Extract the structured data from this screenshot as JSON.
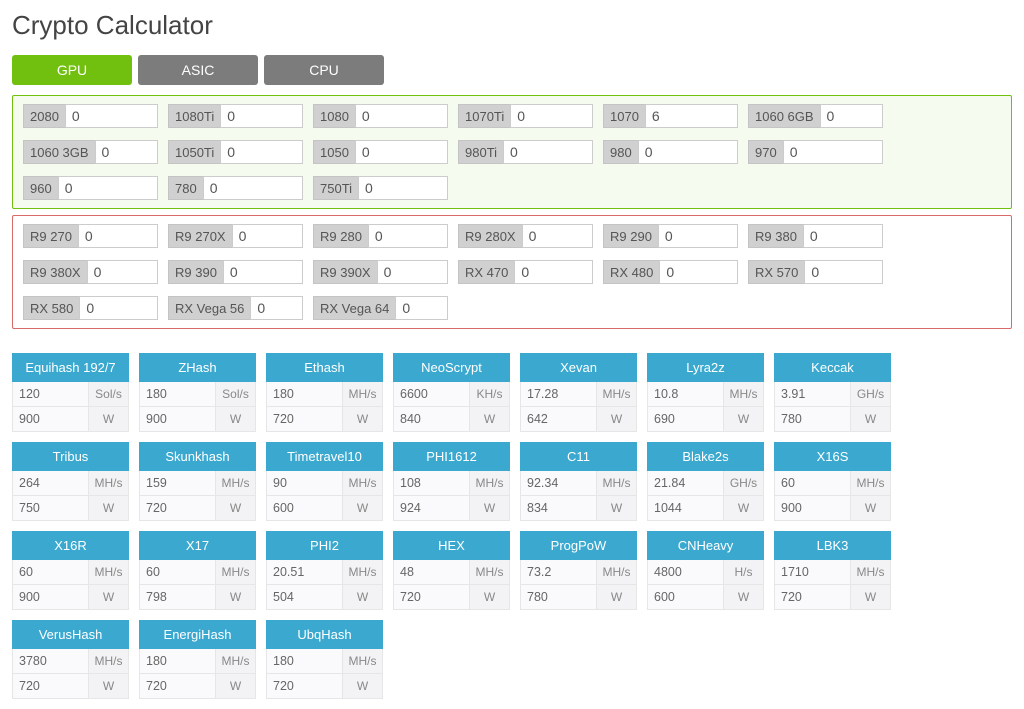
{
  "title": "Crypto Calculator",
  "tabs": {
    "gpu": "GPU",
    "asic": "ASIC",
    "cpu": "CPU"
  },
  "colors": {
    "tab_active": "#71c010",
    "tab_inactive": "#7c7c7c",
    "panel_green_border": "#71c010",
    "panel_green_bg": "#f6fbef",
    "panel_red_border": "#d86a6a",
    "algo_header": "#3ba9cf"
  },
  "nvidia": [
    {
      "label": "2080",
      "value": "0"
    },
    {
      "label": "1080Ti",
      "value": "0"
    },
    {
      "label": "1080",
      "value": "0"
    },
    {
      "label": "1070Ti",
      "value": "0"
    },
    {
      "label": "1070",
      "value": "6"
    },
    {
      "label": "1060 6GB",
      "value": "0"
    },
    {
      "label": "1060 3GB",
      "value": "0"
    },
    {
      "label": "1050Ti",
      "value": "0"
    },
    {
      "label": "1050",
      "value": "0"
    },
    {
      "label": "980Ti",
      "value": "0"
    },
    {
      "label": "980",
      "value": "0"
    },
    {
      "label": "970",
      "value": "0"
    },
    {
      "label": "960",
      "value": "0"
    },
    {
      "label": "780",
      "value": "0"
    },
    {
      "label": "750Ti",
      "value": "0"
    }
  ],
  "amd": [
    {
      "label": "R9 270",
      "value": "0"
    },
    {
      "label": "R9 270X",
      "value": "0"
    },
    {
      "label": "R9 280",
      "value": "0"
    },
    {
      "label": "R9 280X",
      "value": "0"
    },
    {
      "label": "R9 290",
      "value": "0"
    },
    {
      "label": "R9 380",
      "value": "0"
    },
    {
      "label": "R9 380X",
      "value": "0"
    },
    {
      "label": "R9 390",
      "value": "0"
    },
    {
      "label": "R9 390X",
      "value": "0"
    },
    {
      "label": "RX 470",
      "value": "0"
    },
    {
      "label": "RX 480",
      "value": "0"
    },
    {
      "label": "RX 570",
      "value": "0"
    },
    {
      "label": "RX 580",
      "value": "0"
    },
    {
      "label": "RX Vega 56",
      "value": "0"
    },
    {
      "label": "RX Vega 64",
      "value": "0"
    }
  ],
  "algos": [
    {
      "name": "Equihash 192/7",
      "hash": "120",
      "hash_unit": "Sol/s",
      "power": "900",
      "power_unit": "W"
    },
    {
      "name": "ZHash",
      "hash": "180",
      "hash_unit": "Sol/s",
      "power": "900",
      "power_unit": "W"
    },
    {
      "name": "Ethash",
      "hash": "180",
      "hash_unit": "MH/s",
      "power": "720",
      "power_unit": "W"
    },
    {
      "name": "NeoScrypt",
      "hash": "6600",
      "hash_unit": "KH/s",
      "power": "840",
      "power_unit": "W"
    },
    {
      "name": "Xevan",
      "hash": "17.28",
      "hash_unit": "MH/s",
      "power": "642",
      "power_unit": "W"
    },
    {
      "name": "Lyra2z",
      "hash": "10.8",
      "hash_unit": "MH/s",
      "power": "690",
      "power_unit": "W"
    },
    {
      "name": "Keccak",
      "hash": "3.91",
      "hash_unit": "GH/s",
      "power": "780",
      "power_unit": "W"
    },
    {
      "name": "Tribus",
      "hash": "264",
      "hash_unit": "MH/s",
      "power": "750",
      "power_unit": "W"
    },
    {
      "name": "Skunkhash",
      "hash": "159",
      "hash_unit": "MH/s",
      "power": "720",
      "power_unit": "W"
    },
    {
      "name": "Timetravel10",
      "hash": "90",
      "hash_unit": "MH/s",
      "power": "600",
      "power_unit": "W"
    },
    {
      "name": "PHI1612",
      "hash": "108",
      "hash_unit": "MH/s",
      "power": "924",
      "power_unit": "W"
    },
    {
      "name": "C11",
      "hash": "92.34",
      "hash_unit": "MH/s",
      "power": "834",
      "power_unit": "W"
    },
    {
      "name": "Blake2s",
      "hash": "21.84",
      "hash_unit": "GH/s",
      "power": "1044",
      "power_unit": "W"
    },
    {
      "name": "X16S",
      "hash": "60",
      "hash_unit": "MH/s",
      "power": "900",
      "power_unit": "W"
    },
    {
      "name": "X16R",
      "hash": "60",
      "hash_unit": "MH/s",
      "power": "900",
      "power_unit": "W"
    },
    {
      "name": "X17",
      "hash": "60",
      "hash_unit": "MH/s",
      "power": "798",
      "power_unit": "W"
    },
    {
      "name": "PHI2",
      "hash": "20.51",
      "hash_unit": "MH/s",
      "power": "504",
      "power_unit": "W"
    },
    {
      "name": "HEX",
      "hash": "48",
      "hash_unit": "MH/s",
      "power": "720",
      "power_unit": "W"
    },
    {
      "name": "ProgPoW",
      "hash": "73.2",
      "hash_unit": "MH/s",
      "power": "780",
      "power_unit": "W"
    },
    {
      "name": "CNHeavy",
      "hash": "4800",
      "hash_unit": "H/s",
      "power": "600",
      "power_unit": "W"
    },
    {
      "name": "LBK3",
      "hash": "1710",
      "hash_unit": "MH/s",
      "power": "720",
      "power_unit": "W"
    },
    {
      "name": "VerusHash",
      "hash": "3780",
      "hash_unit": "MH/s",
      "power": "720",
      "power_unit": "W"
    },
    {
      "name": "EnergiHash",
      "hash": "180",
      "hash_unit": "MH/s",
      "power": "720",
      "power_unit": "W"
    },
    {
      "name": "UbqHash",
      "hash": "180",
      "hash_unit": "MH/s",
      "power": "720",
      "power_unit": "W"
    }
  ]
}
